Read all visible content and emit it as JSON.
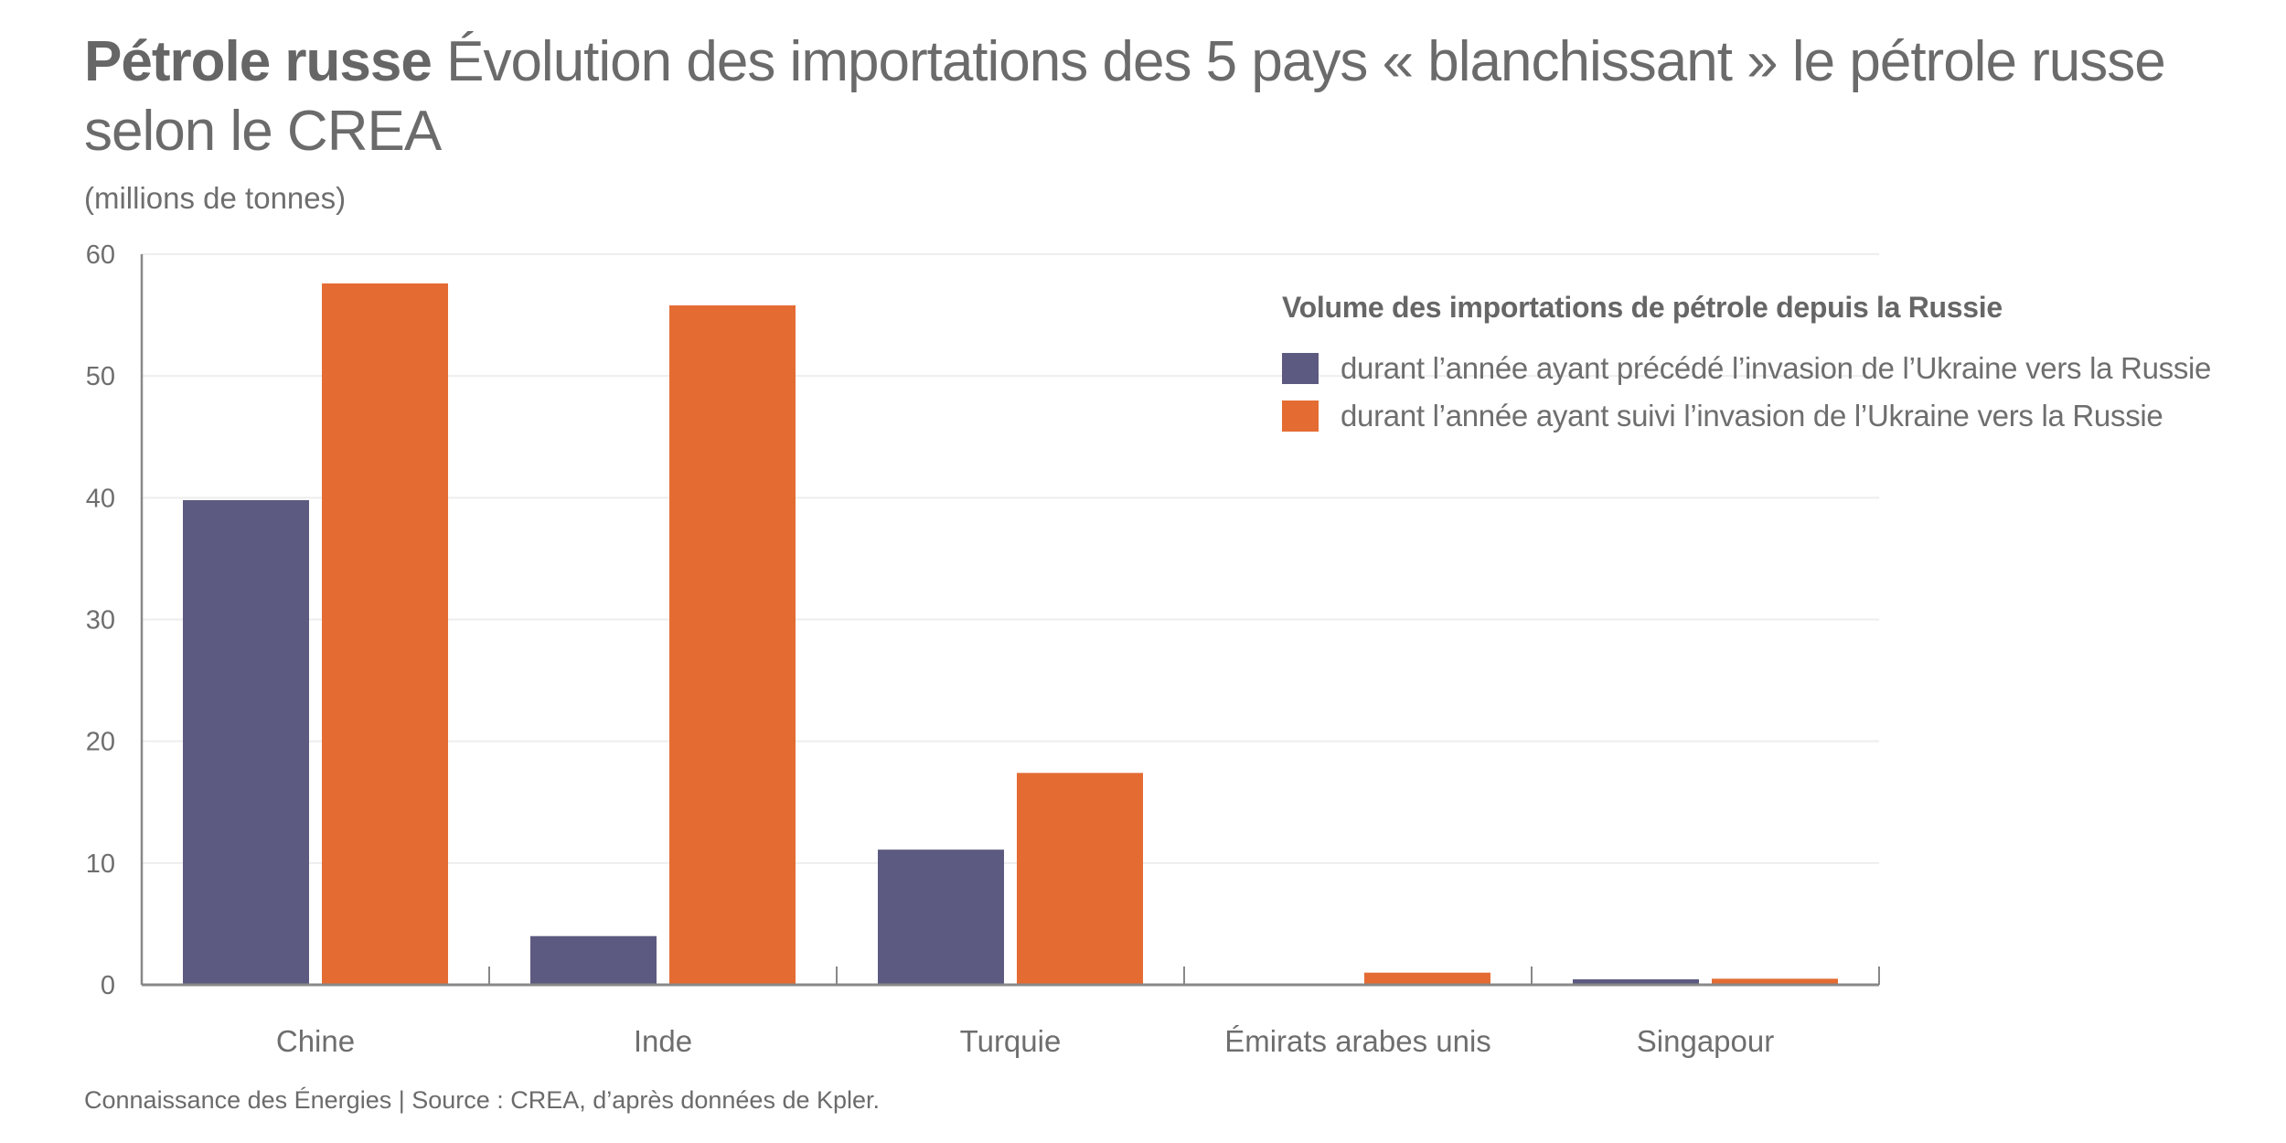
{
  "header": {
    "title_bold": "Pétrole russe",
    "title_rest": "Évolution des importations des 5 pays « blanchissant » le pétrole russe selon le CREA",
    "units": "(millions de tonnes)"
  },
  "footer": "Connaissance des Énergies | Source : CREA, d’après données de Kpler.",
  "colors": {
    "before": "#5c5a80",
    "after": "#e46c33",
    "grid": "#eeeeee",
    "axis": "#888888",
    "text": "#6e6e6e"
  },
  "chart_data": {
    "type": "bar",
    "title": "Pétrole russe Évolution des importations des 5 pays « blanchissant » le pétrole russe selon le CREA",
    "ylabel": "(millions de tonnes)",
    "xlabel": "",
    "ylim": [
      0,
      60
    ],
    "yticks": [
      0,
      10,
      20,
      30,
      40,
      50,
      60
    ],
    "grid": true,
    "legend_position": "top-right",
    "legend_title": "Volume des importations de pétrole depuis la Russie",
    "categories": [
      "Chine",
      "Inde",
      "Turquie",
      "Émirats arabes unis",
      "Singapour"
    ],
    "series": [
      {
        "name": "durant l’année ayant précédé l’invasion de l’Ukraine vers la Russie",
        "color": "#5c5a80",
        "values": [
          39.8,
          4.0,
          11.1,
          0.05,
          0.45
        ]
      },
      {
        "name": "durant l’année ayant suivi l’invasion de l’Ukraine vers la Russie",
        "color": "#e46c33",
        "values": [
          57.6,
          55.8,
          17.4,
          1.0,
          0.5
        ]
      }
    ]
  }
}
